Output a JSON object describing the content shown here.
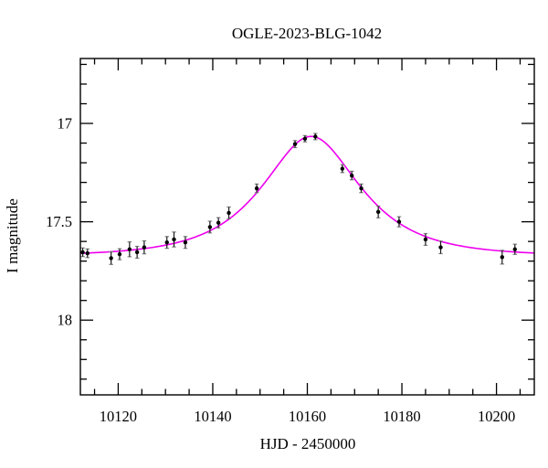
{
  "figure": {
    "background": "#ffffff",
    "frame_color": "#000000"
  },
  "chart_data": {
    "type": "scatter",
    "title": "OGLE-2023-BLG-1042",
    "xlabel": "HJD - 2450000",
    "ylabel": "I magnitude",
    "xlim": [
      10112,
      10208
    ],
    "ylim_top": 16.67,
    "ylim_bottom": 18.38,
    "y_axis_inverted_magnitude": true,
    "grid": false,
    "legend": false,
    "x_major_ticks": [
      {
        "v": 10120,
        "label": "10120"
      },
      {
        "v": 10140,
        "label": "10140"
      },
      {
        "v": 10160,
        "label": "10160"
      },
      {
        "v": 10180,
        "label": "10180"
      },
      {
        "v": 10200,
        "label": "10200"
      }
    ],
    "x_minor_step": 5,
    "y_major_ticks": [
      {
        "v": 17,
        "label": "17"
      },
      {
        "v": 17.5,
        "label": "17.5"
      },
      {
        "v": 18,
        "label": "18"
      }
    ],
    "y_minor_step": 0.1,
    "point_color": "#000000",
    "errorbar_color": "#1a1a1a",
    "errorbar_cap_color": "#888888",
    "model_color": "#ee00ee",
    "points": [
      {
        "t": 10112.5,
        "mag": 17.655,
        "err": 0.022
      },
      {
        "t": 10113.5,
        "mag": 17.66,
        "err": 0.022
      },
      {
        "t": 10118.5,
        "mag": 17.685,
        "err": 0.032
      },
      {
        "t": 10120.3,
        "mag": 17.665,
        "err": 0.028
      },
      {
        "t": 10122.4,
        "mag": 17.64,
        "err": 0.038
      },
      {
        "t": 10124.0,
        "mag": 17.655,
        "err": 0.03
      },
      {
        "t": 10125.5,
        "mag": 17.63,
        "err": 0.033
      },
      {
        "t": 10130.3,
        "mag": 17.605,
        "err": 0.03
      },
      {
        "t": 10131.8,
        "mag": 17.59,
        "err": 0.038
      },
      {
        "t": 10134.2,
        "mag": 17.605,
        "err": 0.03
      },
      {
        "t": 10139.4,
        "mag": 17.527,
        "err": 0.03
      },
      {
        "t": 10141.2,
        "mag": 17.505,
        "err": 0.026
      },
      {
        "t": 10143.4,
        "mag": 17.455,
        "err": 0.03
      },
      {
        "t": 10149.3,
        "mag": 17.33,
        "err": 0.022
      },
      {
        "t": 10157.4,
        "mag": 17.105,
        "err": 0.018
      },
      {
        "t": 10159.5,
        "mag": 17.078,
        "err": 0.016
      },
      {
        "t": 10161.7,
        "mag": 17.067,
        "err": 0.016
      },
      {
        "t": 10167.4,
        "mag": 17.23,
        "err": 0.02
      },
      {
        "t": 10169.4,
        "mag": 17.265,
        "err": 0.022
      },
      {
        "t": 10171.4,
        "mag": 17.33,
        "err": 0.022
      },
      {
        "t": 10175.0,
        "mag": 17.45,
        "err": 0.03
      },
      {
        "t": 10179.4,
        "mag": 17.5,
        "err": 0.026
      },
      {
        "t": 10185.0,
        "mag": 17.59,
        "err": 0.03
      },
      {
        "t": 10188.2,
        "mag": 17.63,
        "err": 0.032
      },
      {
        "t": 10201.2,
        "mag": 17.68,
        "err": 0.035
      },
      {
        "t": 10203.9,
        "mag": 17.64,
        "err": 0.026
      }
    ],
    "model": {
      "kind": "paczynski-point-lens",
      "t0": 10160.8,
      "tE": 15.5,
      "u0": 0.66,
      "baseline_mag": 17.675,
      "peak_mag": 17.07
    }
  }
}
